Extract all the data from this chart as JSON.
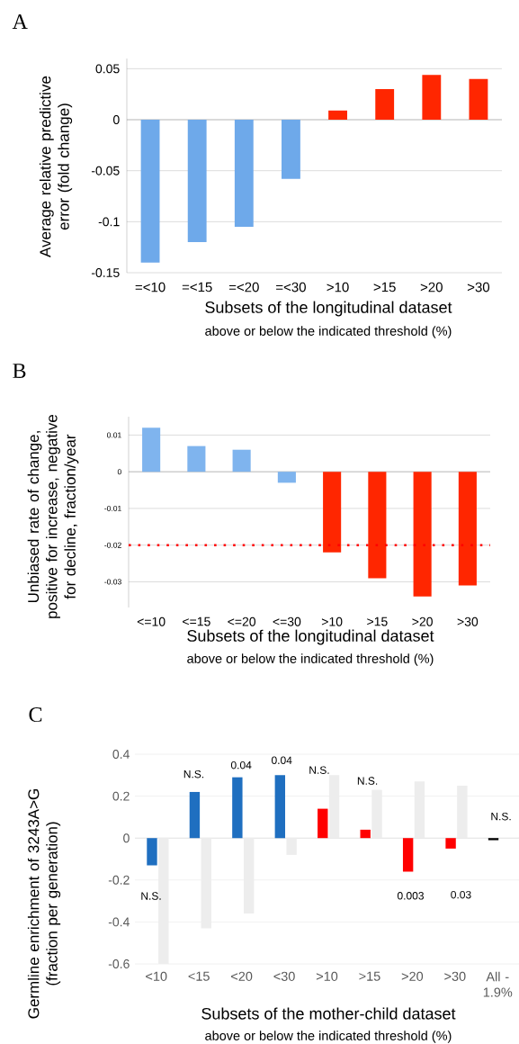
{
  "chart_data": [
    {
      "type": "bar",
      "title": "A",
      "ylabel": "Average  relative predictive error (fold change)",
      "xlabel": "Subsets of the longitudinal dataset",
      "annotations": [
        "above or below the indicated threshold (%)"
      ],
      "categories": [
        "=<10",
        "=<15",
        "=<20",
        "=<30",
        ">10",
        ">15",
        ">20",
        ">30"
      ],
      "values": [
        -0.14,
        -0.12,
        -0.105,
        -0.058,
        0.009,
        0.03,
        0.044,
        0.04
      ],
      "colors": [
        "#6ea9ea",
        "#6ea9ea",
        "#6ea9ea",
        "#6ea9ea",
        "#ff2600",
        "#ff2600",
        "#ff2600",
        "#ff2600"
      ],
      "ylim": [
        -0.15,
        0.06
      ],
      "yticks": [
        -0.15,
        -0.1,
        -0.05,
        0,
        0.05
      ],
      "grid": "y"
    },
    {
      "type": "bar",
      "title": "B",
      "ylabel": "Unbiased rate of  change, positive for increase, negative for decline, fraction/year",
      "xlabel": "Subsets of the longitudinal dataset",
      "annotations": [
        "above or below the indicated threshold (%)"
      ],
      "categories": [
        "<=10",
        "<=15",
        "<=20",
        "<=30",
        ">10",
        ">15",
        ">20",
        ">30"
      ],
      "values": [
        0.012,
        0.007,
        0.006,
        -0.003,
        -0.022,
        -0.029,
        -0.034,
        -0.031
      ],
      "colors": [
        "#7fb4ee",
        "#7fb4ee",
        "#7fb4ee",
        "#7fb4ee",
        "#ff2600",
        "#ff2600",
        "#ff2600",
        "#ff2600"
      ],
      "ylim": [
        -0.037,
        0.015
      ],
      "yticks": [
        -0.03,
        -0.02,
        -0.01,
        0,
        0.01
      ],
      "grid": "y",
      "ref_lines": [
        {
          "axis": "y",
          "value": -0.02,
          "color": "#ff0000",
          "line_style": "dotted"
        }
      ]
    },
    {
      "type": "bar",
      "title": "C",
      "ylabel": "Germline enrichment  of 3243A>G (fraction per generation)",
      "xlabel": "Subsets of the mother-child dataset",
      "annotations": [
        "above or below the indicated threshold (%)",
        "N.S.",
        "N.S.",
        "0.04",
        "0.04",
        "N.S.",
        "N.S.",
        "0.003",
        "0.03",
        "N.S."
      ],
      "categories": [
        "<10",
        "<15",
        "<20",
        "<30",
        ">10",
        ">15",
        ">20",
        ">30",
        "All - 1.9%"
      ],
      "series": [
        {
          "colors": [
            "#1f6fc0",
            "#1f6fc0",
            "#1f6fc0",
            "#1f6fc0",
            "#ff0000",
            "#ff0000",
            "#ff0000",
            "#ff0000",
            "#000000"
          ],
          "values": [
            -0.13,
            0.22,
            0.29,
            0.3,
            0.14,
            0.04,
            -0.16,
            -0.05,
            -0.01
          ]
        },
        {
          "color": "#ededed",
          "values": [
            -0.6,
            -0.43,
            -0.36,
            -0.08,
            0.3,
            0.23,
            0.27,
            0.25,
            null
          ]
        }
      ],
      "ylim": [
        -0.6,
        0.4
      ],
      "yticks": [
        -0.6,
        -0.4,
        -0.2,
        0,
        0.2,
        0.4
      ],
      "grid": "y"
    }
  ]
}
